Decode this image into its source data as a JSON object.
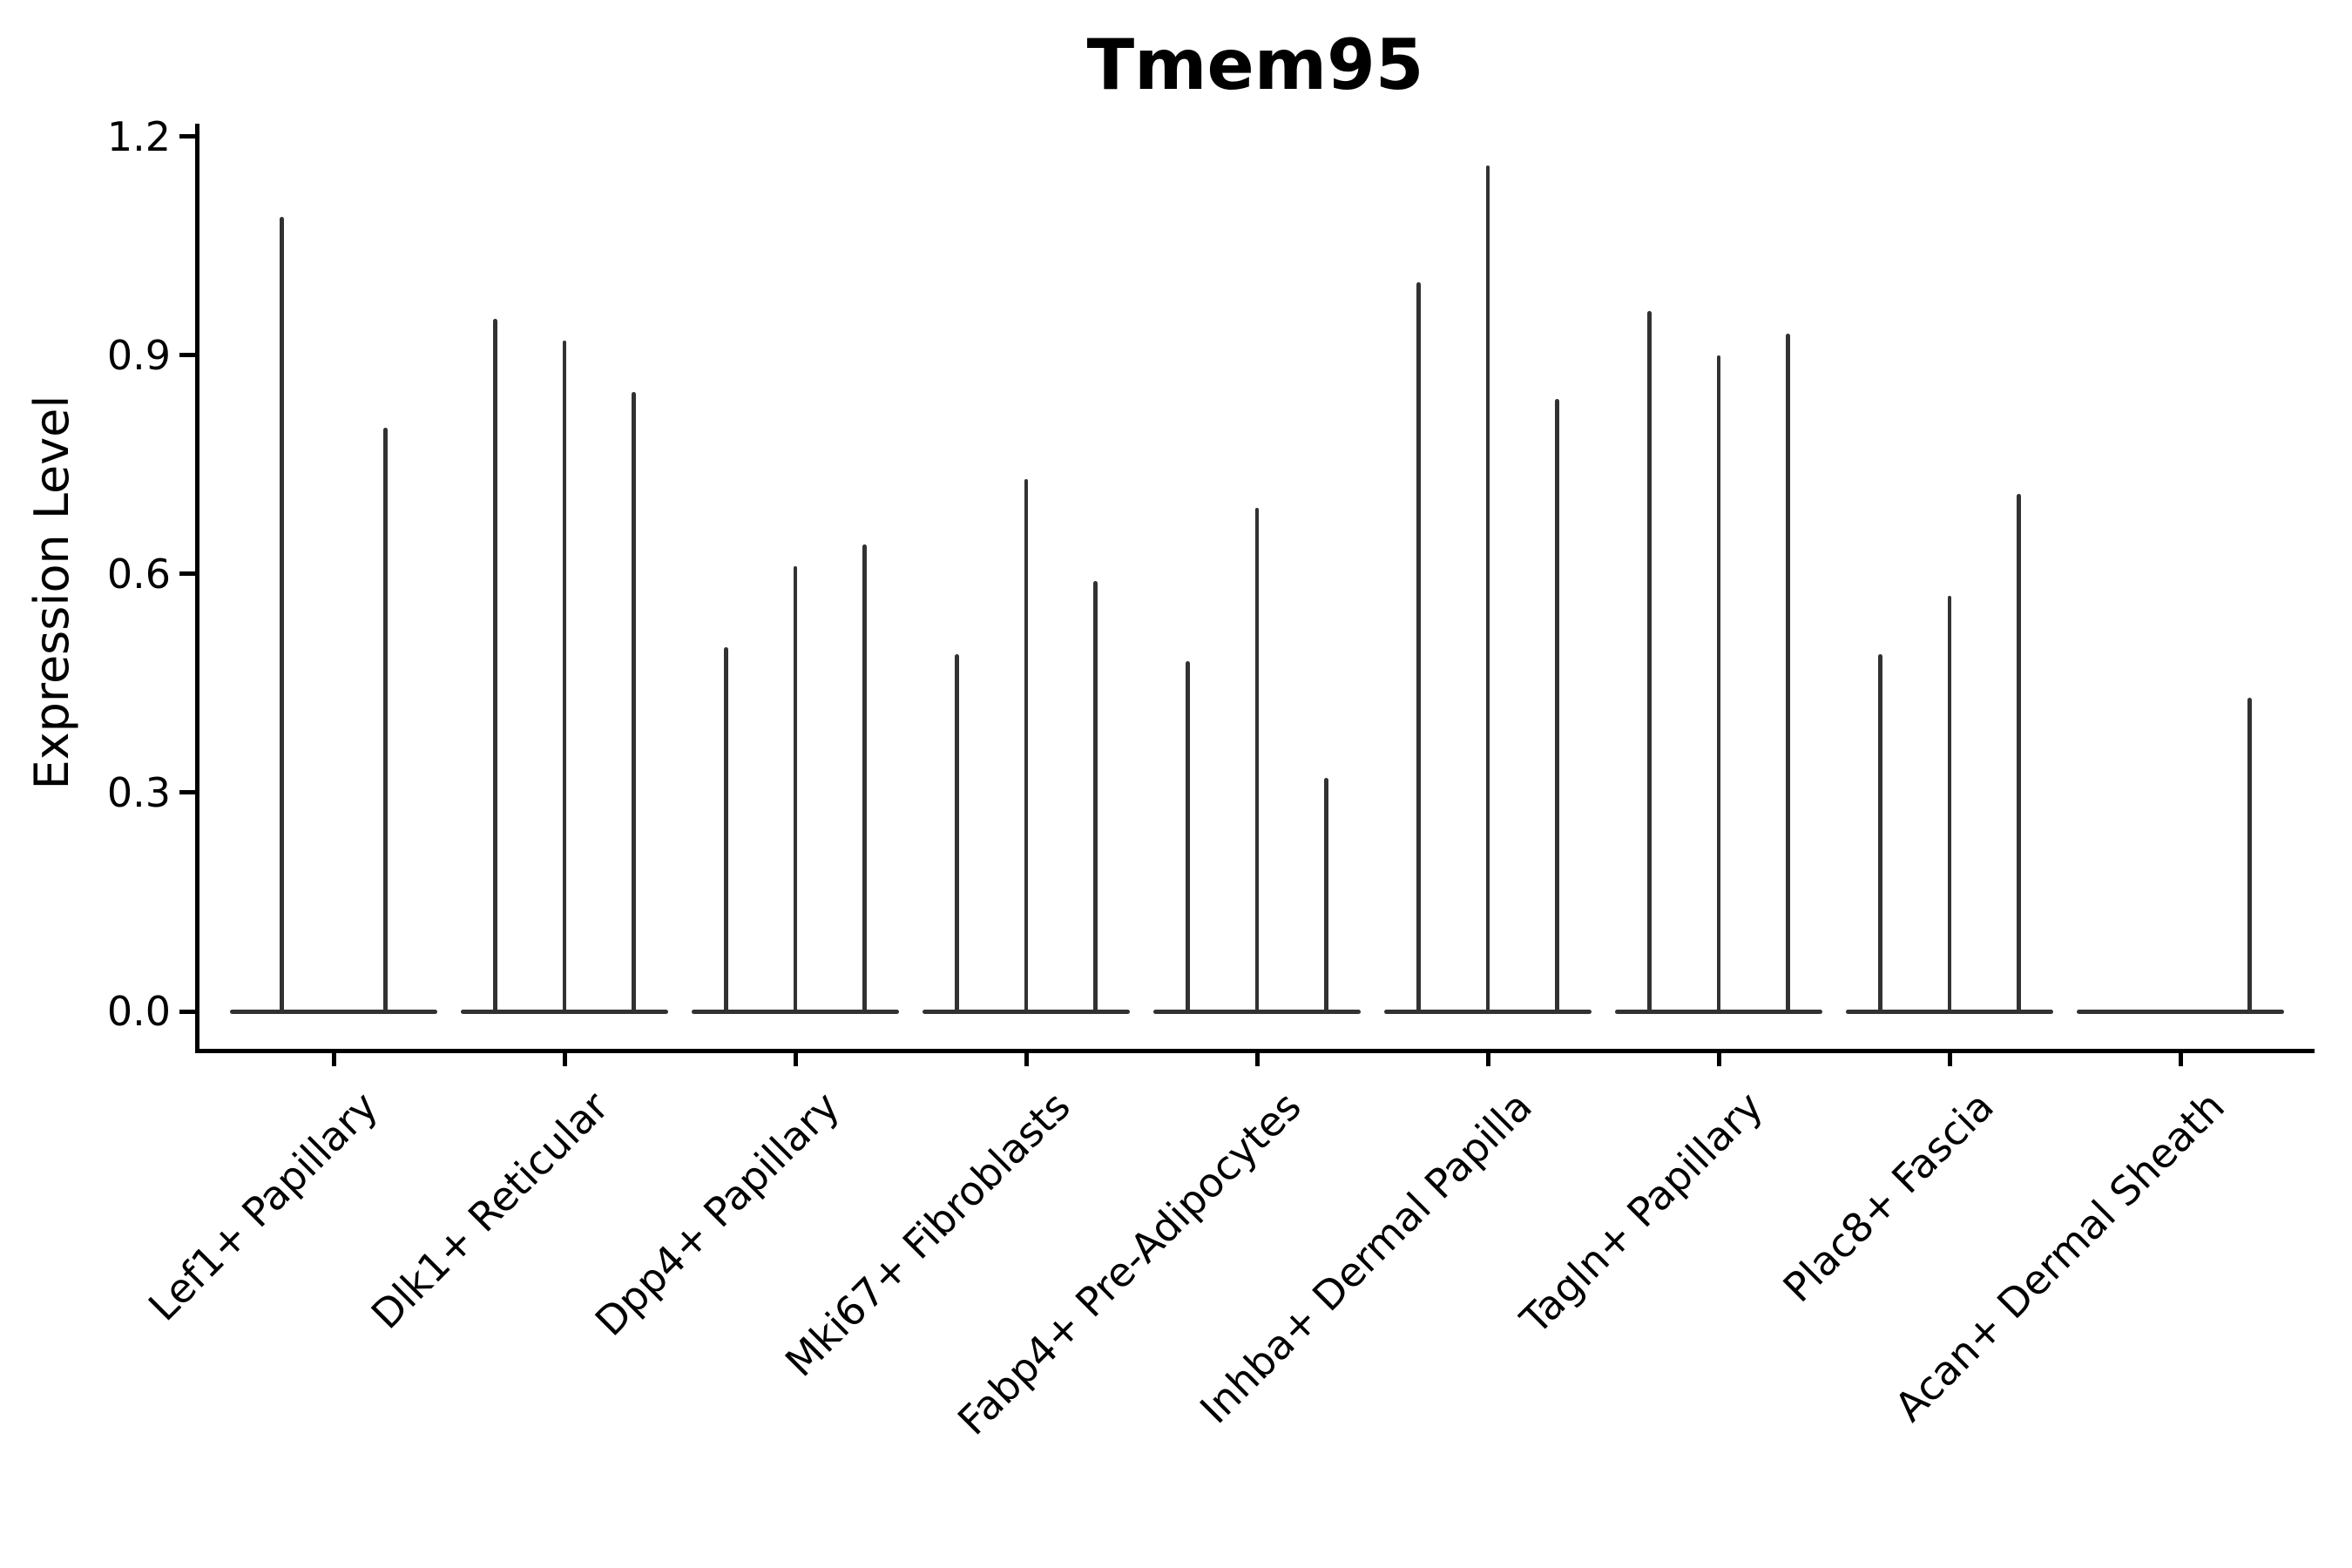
{
  "chart_data": {
    "type": "violin",
    "title": "Tmem95",
    "ylabel": "Expression Level",
    "xlabel": "",
    "grid": false,
    "legend": null,
    "background_color": "#ffffff",
    "violin_color": "#323232",
    "axis_color": "#000000",
    "ylim": [
      -0.055,
      1.217
    ],
    "ytick_labels": [
      "1.2",
      "0.9",
      "0.6",
      "0.3",
      "0.0"
    ],
    "ytick_values": [
      1.2,
      0.9,
      0.6,
      0.3,
      0.0
    ],
    "categories": [
      "Lef1+ Papillary",
      "Dlk1+ Reticular",
      "Dpp4+ Papillary",
      "Mki67+ Fibroblasts",
      "Fabp4+ Pre-Adipocytes",
      "Inhba+ Dermal Papilla",
      "Tagln+ Papillary",
      "Plac8+ Fascia",
      "Acan+ Dermal Sheath"
    ],
    "series_note": "Each category shows narrow violin spikes; values are the peak Expression Level reached by each violin (violins with value 0 are flat baselines).",
    "violin_peaks": [
      [
        1.09,
        0.8
      ],
      [
        0.95,
        0.92,
        0.85
      ],
      [
        0.5,
        0.61,
        0.64
      ],
      [
        0.49,
        0.73,
        0.59
      ],
      [
        0.48,
        0.69,
        0.32
      ],
      [
        1.0,
        1.16,
        0.84
      ],
      [
        0.96,
        0.9,
        0.93
      ],
      [
        0.49,
        0.57,
        0.71
      ],
      [
        0.0,
        0.0,
        0.43
      ]
    ]
  }
}
